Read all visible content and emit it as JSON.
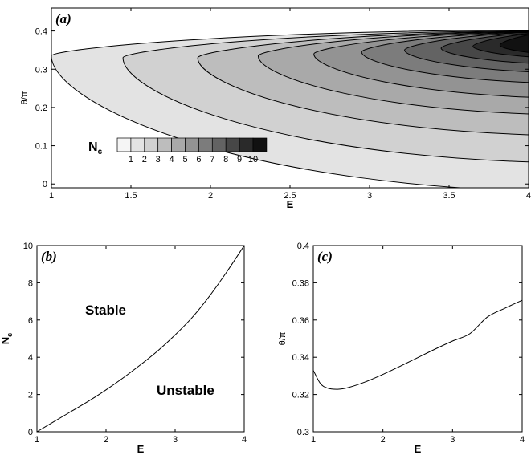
{
  "chart_data": [
    {
      "panel": "(a)",
      "type": "heatmap",
      "xlabel": "E",
      "ylabel": "θ/π",
      "xlim": [
        1,
        4
      ],
      "ylim": [
        -0.01,
        0.46
      ],
      "xticks": [
        "1",
        "1.5",
        "2",
        "2.5",
        "3",
        "3.5",
        "4"
      ],
      "yticks": [
        "0",
        "0.1",
        "0.2",
        "0.3",
        "0.4"
      ],
      "colorbar": {
        "title": "N",
        "title_sub": "c",
        "levels": [
          "1",
          "2",
          "3",
          "4",
          "5",
          "6",
          "7",
          "8",
          "9",
          "10"
        ],
        "colors": [
          "#f5f5f5",
          "#e3e3e3",
          "#d1d1d1",
          "#bdbdbd",
          "#a9a9a9",
          "#939393",
          "#7c7c7c",
          "#636363",
          "#474747",
          "#2a2a2a",
          "#111111"
        ],
        "placement": "lower-left"
      },
      "contour_levels": [
        {
          "level": 1,
          "start_E": 1.0,
          "apex_theta": 0.335,
          "upper_theta_at_4": 0.395,
          "lower_theta_at_4": 0.02
        },
        {
          "level": 2,
          "start_E": 1.45,
          "apex_theta": 0.33,
          "upper_theta_at_4": 0.392,
          "lower_theta_at_4": 0.09
        },
        {
          "level": 3,
          "start_E": 1.92,
          "apex_theta": 0.33,
          "upper_theta_at_4": 0.39,
          "lower_theta_at_4": 0.155
        },
        {
          "level": 4,
          "start_E": 2.3,
          "apex_theta": 0.335,
          "upper_theta_at_4": 0.389,
          "lower_theta_at_4": 0.205
        },
        {
          "level": 5,
          "start_E": 2.65,
          "apex_theta": 0.34,
          "upper_theta_at_4": 0.388,
          "lower_theta_at_4": 0.245
        },
        {
          "level": 6,
          "start_E": 2.95,
          "apex_theta": 0.345,
          "upper_theta_at_4": 0.387,
          "lower_theta_at_4": 0.28
        },
        {
          "level": 7,
          "start_E": 3.22,
          "apex_theta": 0.35,
          "upper_theta_at_4": 0.386,
          "lower_theta_at_4": 0.305
        },
        {
          "level": 8,
          "start_E": 3.45,
          "apex_theta": 0.355,
          "upper_theta_at_4": 0.384,
          "lower_theta_at_4": 0.325
        },
        {
          "level": 9,
          "start_E": 3.65,
          "apex_theta": 0.36,
          "upper_theta_at_4": 0.383,
          "lower_theta_at_4": 0.34
        },
        {
          "level": 10,
          "start_E": 3.82,
          "apex_theta": 0.363,
          "upper_theta_at_4": 0.381,
          "lower_theta_at_4": 0.35
        }
      ]
    },
    {
      "panel": "(b)",
      "type": "line",
      "xlabel": "E",
      "ylabel": "N",
      "ylabel_sub": "c",
      "xlim": [
        1,
        4
      ],
      "ylim": [
        0,
        10
      ],
      "xticks": [
        "1",
        "2",
        "3",
        "4"
      ],
      "yticks": [
        "0",
        "2",
        "4",
        "6",
        "8",
        "10"
      ],
      "annotations": [
        "Stable",
        "Unstable"
      ],
      "series": [
        {
          "x": [
            1.0,
            1.25,
            1.5,
            1.75,
            2.0,
            2.25,
            2.5,
            2.75,
            3.0,
            3.25,
            3.5,
            3.75,
            4.0
          ],
          "y": [
            0.0,
            0.55,
            1.1,
            1.65,
            2.25,
            2.9,
            3.6,
            4.35,
            5.2,
            6.15,
            7.3,
            8.6,
            10.0
          ]
        }
      ]
    },
    {
      "panel": "(c)",
      "type": "line",
      "xlabel": "E",
      "ylabel": "θ/π",
      "xlim": [
        1,
        4
      ],
      "ylim": [
        0.3,
        0.4
      ],
      "xticks": [
        "1",
        "2",
        "3",
        "4"
      ],
      "yticks": [
        "0.3",
        "0.32",
        "0.34",
        "0.36",
        "0.38",
        "0.4"
      ],
      "series": [
        {
          "x": [
            1.0,
            1.1,
            1.2,
            1.35,
            1.5,
            1.75,
            2.0,
            2.25,
            2.5,
            2.75,
            3.0,
            3.25,
            3.5,
            3.75,
            4.0
          ],
          "y": [
            0.333,
            0.326,
            0.3235,
            0.3228,
            0.3237,
            0.3268,
            0.3308,
            0.3352,
            0.3398,
            0.3444,
            0.3487,
            0.3527,
            0.3616,
            0.3663,
            0.3706
          ]
        }
      ]
    }
  ]
}
